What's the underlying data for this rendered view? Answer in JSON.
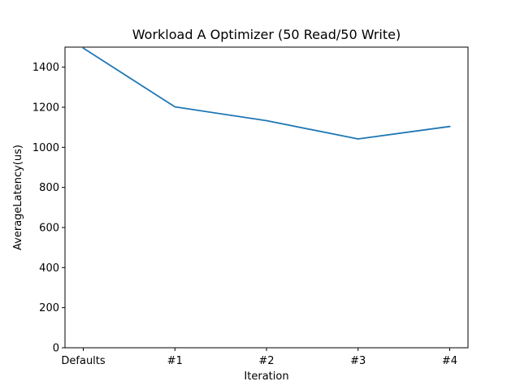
{
  "chart_data": {
    "type": "line",
    "title": "Workload A Optimizer (50 Read/50 Write)",
    "xlabel": "Iteration",
    "ylabel": "AverageLatency(us)",
    "categories": [
      "Defaults",
      "#1",
      "#2",
      "#3",
      "#4"
    ],
    "series": [
      {
        "values": [
          1495,
          1202,
          1133,
          1042,
          1104
        ],
        "color": "#1f77b4"
      }
    ],
    "ylim": [
      0,
      1500
    ],
    "yticks": [
      0,
      200,
      400,
      600,
      800,
      1000,
      1200,
      1400
    ],
    "grid": false,
    "legend": "none"
  }
}
